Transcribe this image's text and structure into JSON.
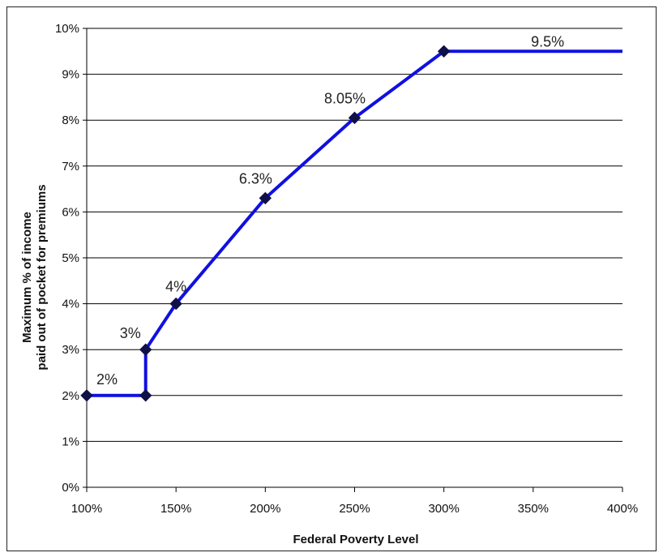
{
  "chart_data": {
    "type": "line",
    "title": "",
    "xlabel": "Federal Poverty Level",
    "ylabel_lines": [
      "Maximum % of income",
      "paid out of pocket for premiums"
    ],
    "x_ticks": [
      {
        "value": 100,
        "label": "100%"
      },
      {
        "value": 150,
        "label": "150%"
      },
      {
        "value": 200,
        "label": "200%"
      },
      {
        "value": 250,
        "label": "250%"
      },
      {
        "value": 300,
        "label": "300%"
      },
      {
        "value": 350,
        "label": "350%"
      },
      {
        "value": 400,
        "label": "400%"
      }
    ],
    "y_ticks": [
      {
        "value": 0,
        "label": "0%"
      },
      {
        "value": 1,
        "label": "1%"
      },
      {
        "value": 2,
        "label": "2%"
      },
      {
        "value": 3,
        "label": "3%"
      },
      {
        "value": 4,
        "label": "4%"
      },
      {
        "value": 5,
        "label": "5%"
      },
      {
        "value": 6,
        "label": "6%"
      },
      {
        "value": 7,
        "label": "7%"
      },
      {
        "value": 8,
        "label": "8%"
      },
      {
        "value": 9,
        "label": "9%"
      },
      {
        "value": 10,
        "label": "10%"
      }
    ],
    "xlim": [
      100,
      400
    ],
    "ylim": [
      0,
      10
    ],
    "grid": "horizontal",
    "legend": "none",
    "series": [
      {
        "color": "#1010e0",
        "points": [
          {
            "x": 100,
            "y": 2,
            "marker": true
          },
          {
            "x": 133,
            "y": 2,
            "marker": true
          },
          {
            "x": 133,
            "y": 3,
            "marker": true
          },
          {
            "x": 150,
            "y": 4,
            "marker": true
          },
          {
            "x": 200,
            "y": 6.3,
            "marker": true
          },
          {
            "x": 250,
            "y": 8.05,
            "marker": true
          },
          {
            "x": 300,
            "y": 9.5,
            "marker": true
          },
          {
            "x": 400,
            "y": 9.5,
            "marker": false
          }
        ]
      }
    ],
    "data_labels": [
      {
        "x": 100,
        "y": 2,
        "text": "2%"
      },
      {
        "x": 133,
        "y": 3,
        "text": "3%"
      },
      {
        "x": 150,
        "y": 4,
        "text": "4%"
      },
      {
        "x": 200,
        "y": 6.3,
        "text": "6.3%"
      },
      {
        "x": 250,
        "y": 8.05,
        "text": "8.05%"
      },
      {
        "x": 300,
        "y": 9.5,
        "text": "9.5%"
      }
    ],
    "marker_color": "#101048",
    "grid_color": "#000000"
  }
}
